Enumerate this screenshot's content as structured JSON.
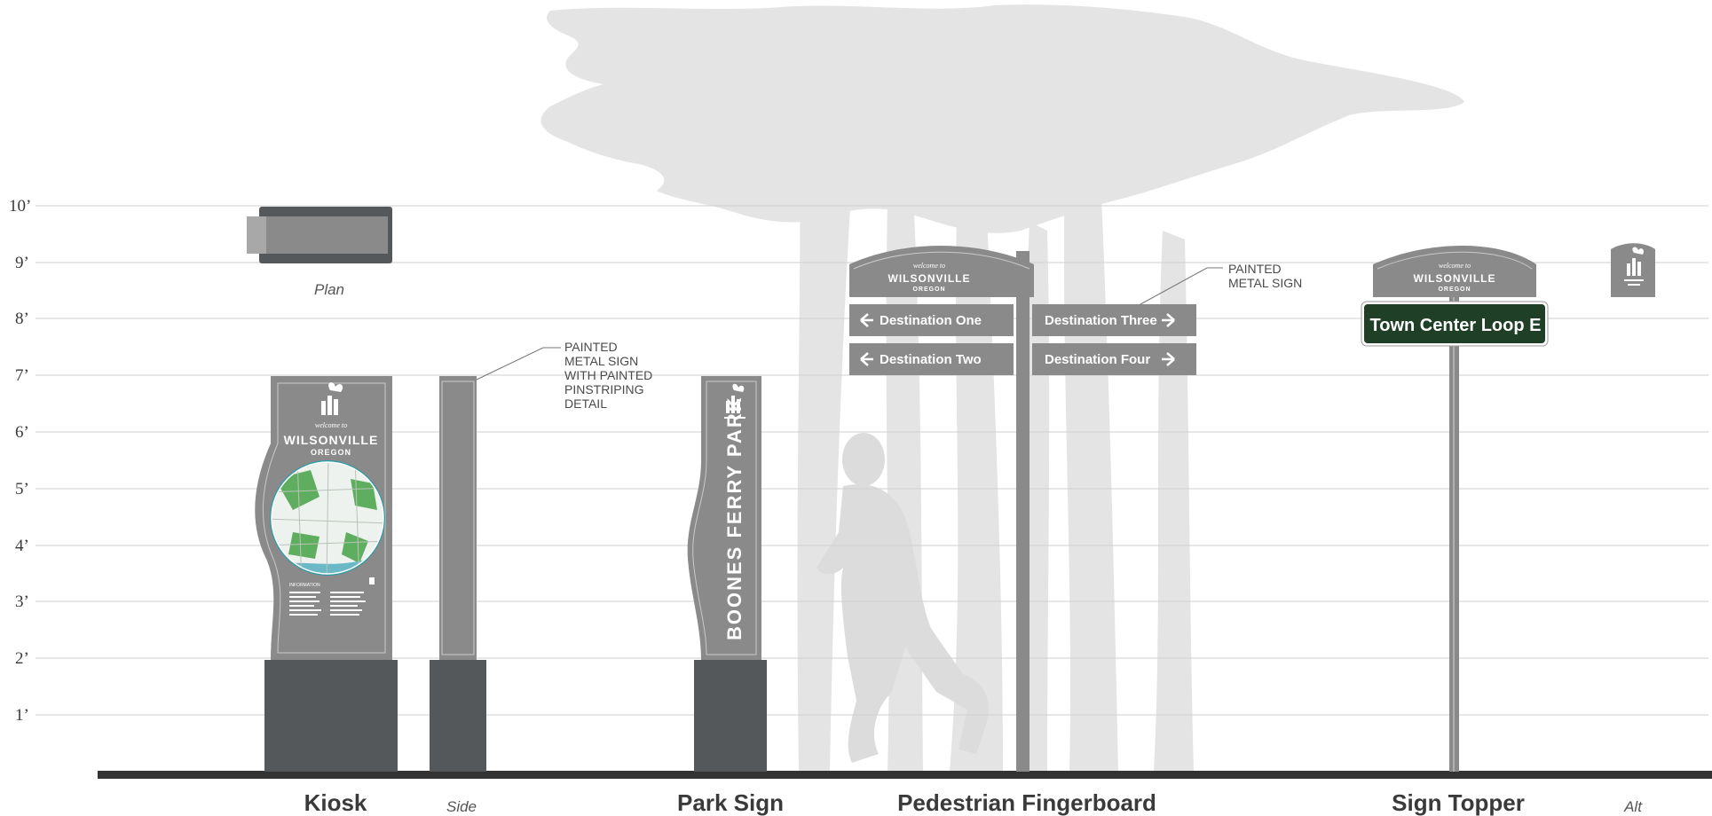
{
  "scale": {
    "ticks": [
      "10’",
      "9’",
      "8’",
      "7’",
      "6’",
      "5’",
      "4’",
      "3’",
      "2’",
      "1’"
    ]
  },
  "kiosk": {
    "caption": "Kiosk",
    "side_caption": "Side",
    "plan_caption": "Plan",
    "welcome": "welcome to",
    "city": "WILSONVILLE",
    "state": "OREGON",
    "info_heading": "INFORMATION",
    "note": [
      "PAINTED",
      "METAL SIGN",
      "WITH PAINTED",
      "PINSTRIPING",
      "DETAIL"
    ]
  },
  "park_sign": {
    "caption": "Park Sign",
    "name": "BOONES FERRY PARK"
  },
  "fingerboard": {
    "caption": "Pedestrian Fingerboard",
    "welcome": "welcome to",
    "city": "WILSONVILLE",
    "state": "OREGON",
    "destinations": [
      "Destination One",
      "Destination Two",
      "Destination Three",
      "Destination Four"
    ],
    "note": [
      "PAINTED",
      "METAL SIGN"
    ]
  },
  "topper": {
    "caption": "Sign Topper",
    "alt_caption": "Alt",
    "welcome": "welcome to",
    "city": "WILSONVILLE",
    "state": "OREGON",
    "street": "Town Center Loop E"
  },
  "colors": {
    "sign_gray": "#8a8a8a",
    "base_dark": "#54585a",
    "street_green": "#1f3f26",
    "map_teal": "#2a9aa8",
    "park_green": "#5fae5f",
    "silhouette": "#e3e3e3"
  }
}
